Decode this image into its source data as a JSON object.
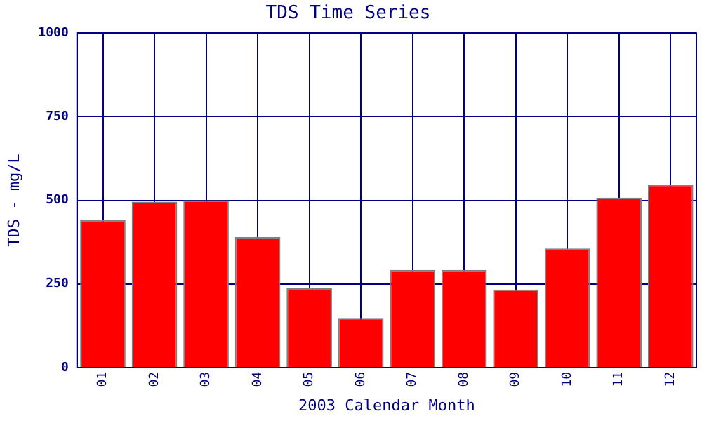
{
  "chart_data": {
    "type": "bar",
    "title": "TDS Time Series",
    "xlabel": "2003 Calendar Month",
    "ylabel": "TDS - mg/L",
    "categories": [
      "01",
      "02",
      "03",
      "04",
      "05",
      "06",
      "07",
      "08",
      "09",
      "10",
      "11",
      "12"
    ],
    "values": [
      441,
      496,
      500,
      390,
      237,
      148,
      292,
      292,
      233,
      356,
      508,
      547
    ],
    "color": "#ff0000",
    "ylim": [
      0,
      1000
    ],
    "yticks": [
      0,
      250,
      500,
      750,
      1000
    ],
    "grid": true,
    "legend": false
  }
}
